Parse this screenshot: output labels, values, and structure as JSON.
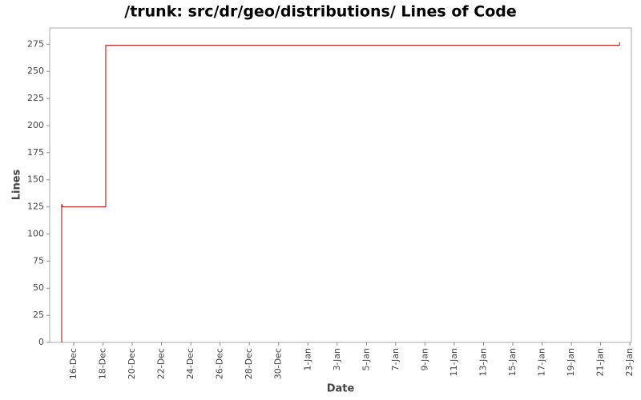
{
  "chart_data": {
    "type": "line",
    "title": "/trunk: src/dr/geo/distributions/ Lines of Code",
    "x_label": "Date",
    "y_label": "Lines",
    "x": [
      -0.82,
      -0.82,
      -0.78,
      -0.78,
      2.19,
      2.19,
      37.29,
      37.29
    ],
    "series": [
      {
        "name": "Lines",
        "color": "#c00000",
        "values": [
          0,
          127,
          127,
          125,
          125,
          274,
          274,
          277
        ]
      }
    ],
    "xlim": [
      -1.64,
      38.1
    ],
    "ylim": [
      0,
      290
    ],
    "xticks": [
      {
        "value": 0,
        "label": "16-Dec"
      },
      {
        "value": 2,
        "label": "18-Dec"
      },
      {
        "value": 4,
        "label": "20-Dec"
      },
      {
        "value": 6,
        "label": "22-Dec"
      },
      {
        "value": 8,
        "label": "24-Dec"
      },
      {
        "value": 10,
        "label": "26-Dec"
      },
      {
        "value": 12,
        "label": "28-Dec"
      },
      {
        "value": 14,
        "label": "30-Dec"
      },
      {
        "value": 16,
        "label": "1-Jan"
      },
      {
        "value": 18,
        "label": "3-Jan"
      },
      {
        "value": 20,
        "label": "5-Jan"
      },
      {
        "value": 22,
        "label": "7-Jan"
      },
      {
        "value": 24,
        "label": "9-Jan"
      },
      {
        "value": 26,
        "label": "11-Jan"
      },
      {
        "value": 28,
        "label": "13-Jan"
      },
      {
        "value": 30,
        "label": "15-Jan"
      },
      {
        "value": 32,
        "label": "17-Jan"
      },
      {
        "value": 34,
        "label": "19-Jan"
      },
      {
        "value": 36,
        "label": "21-Jan"
      },
      {
        "value": 38,
        "label": "23-Jan"
      }
    ],
    "yticks": [
      0,
      25,
      50,
      75,
      100,
      125,
      150,
      175,
      200,
      225,
      250,
      275
    ]
  }
}
